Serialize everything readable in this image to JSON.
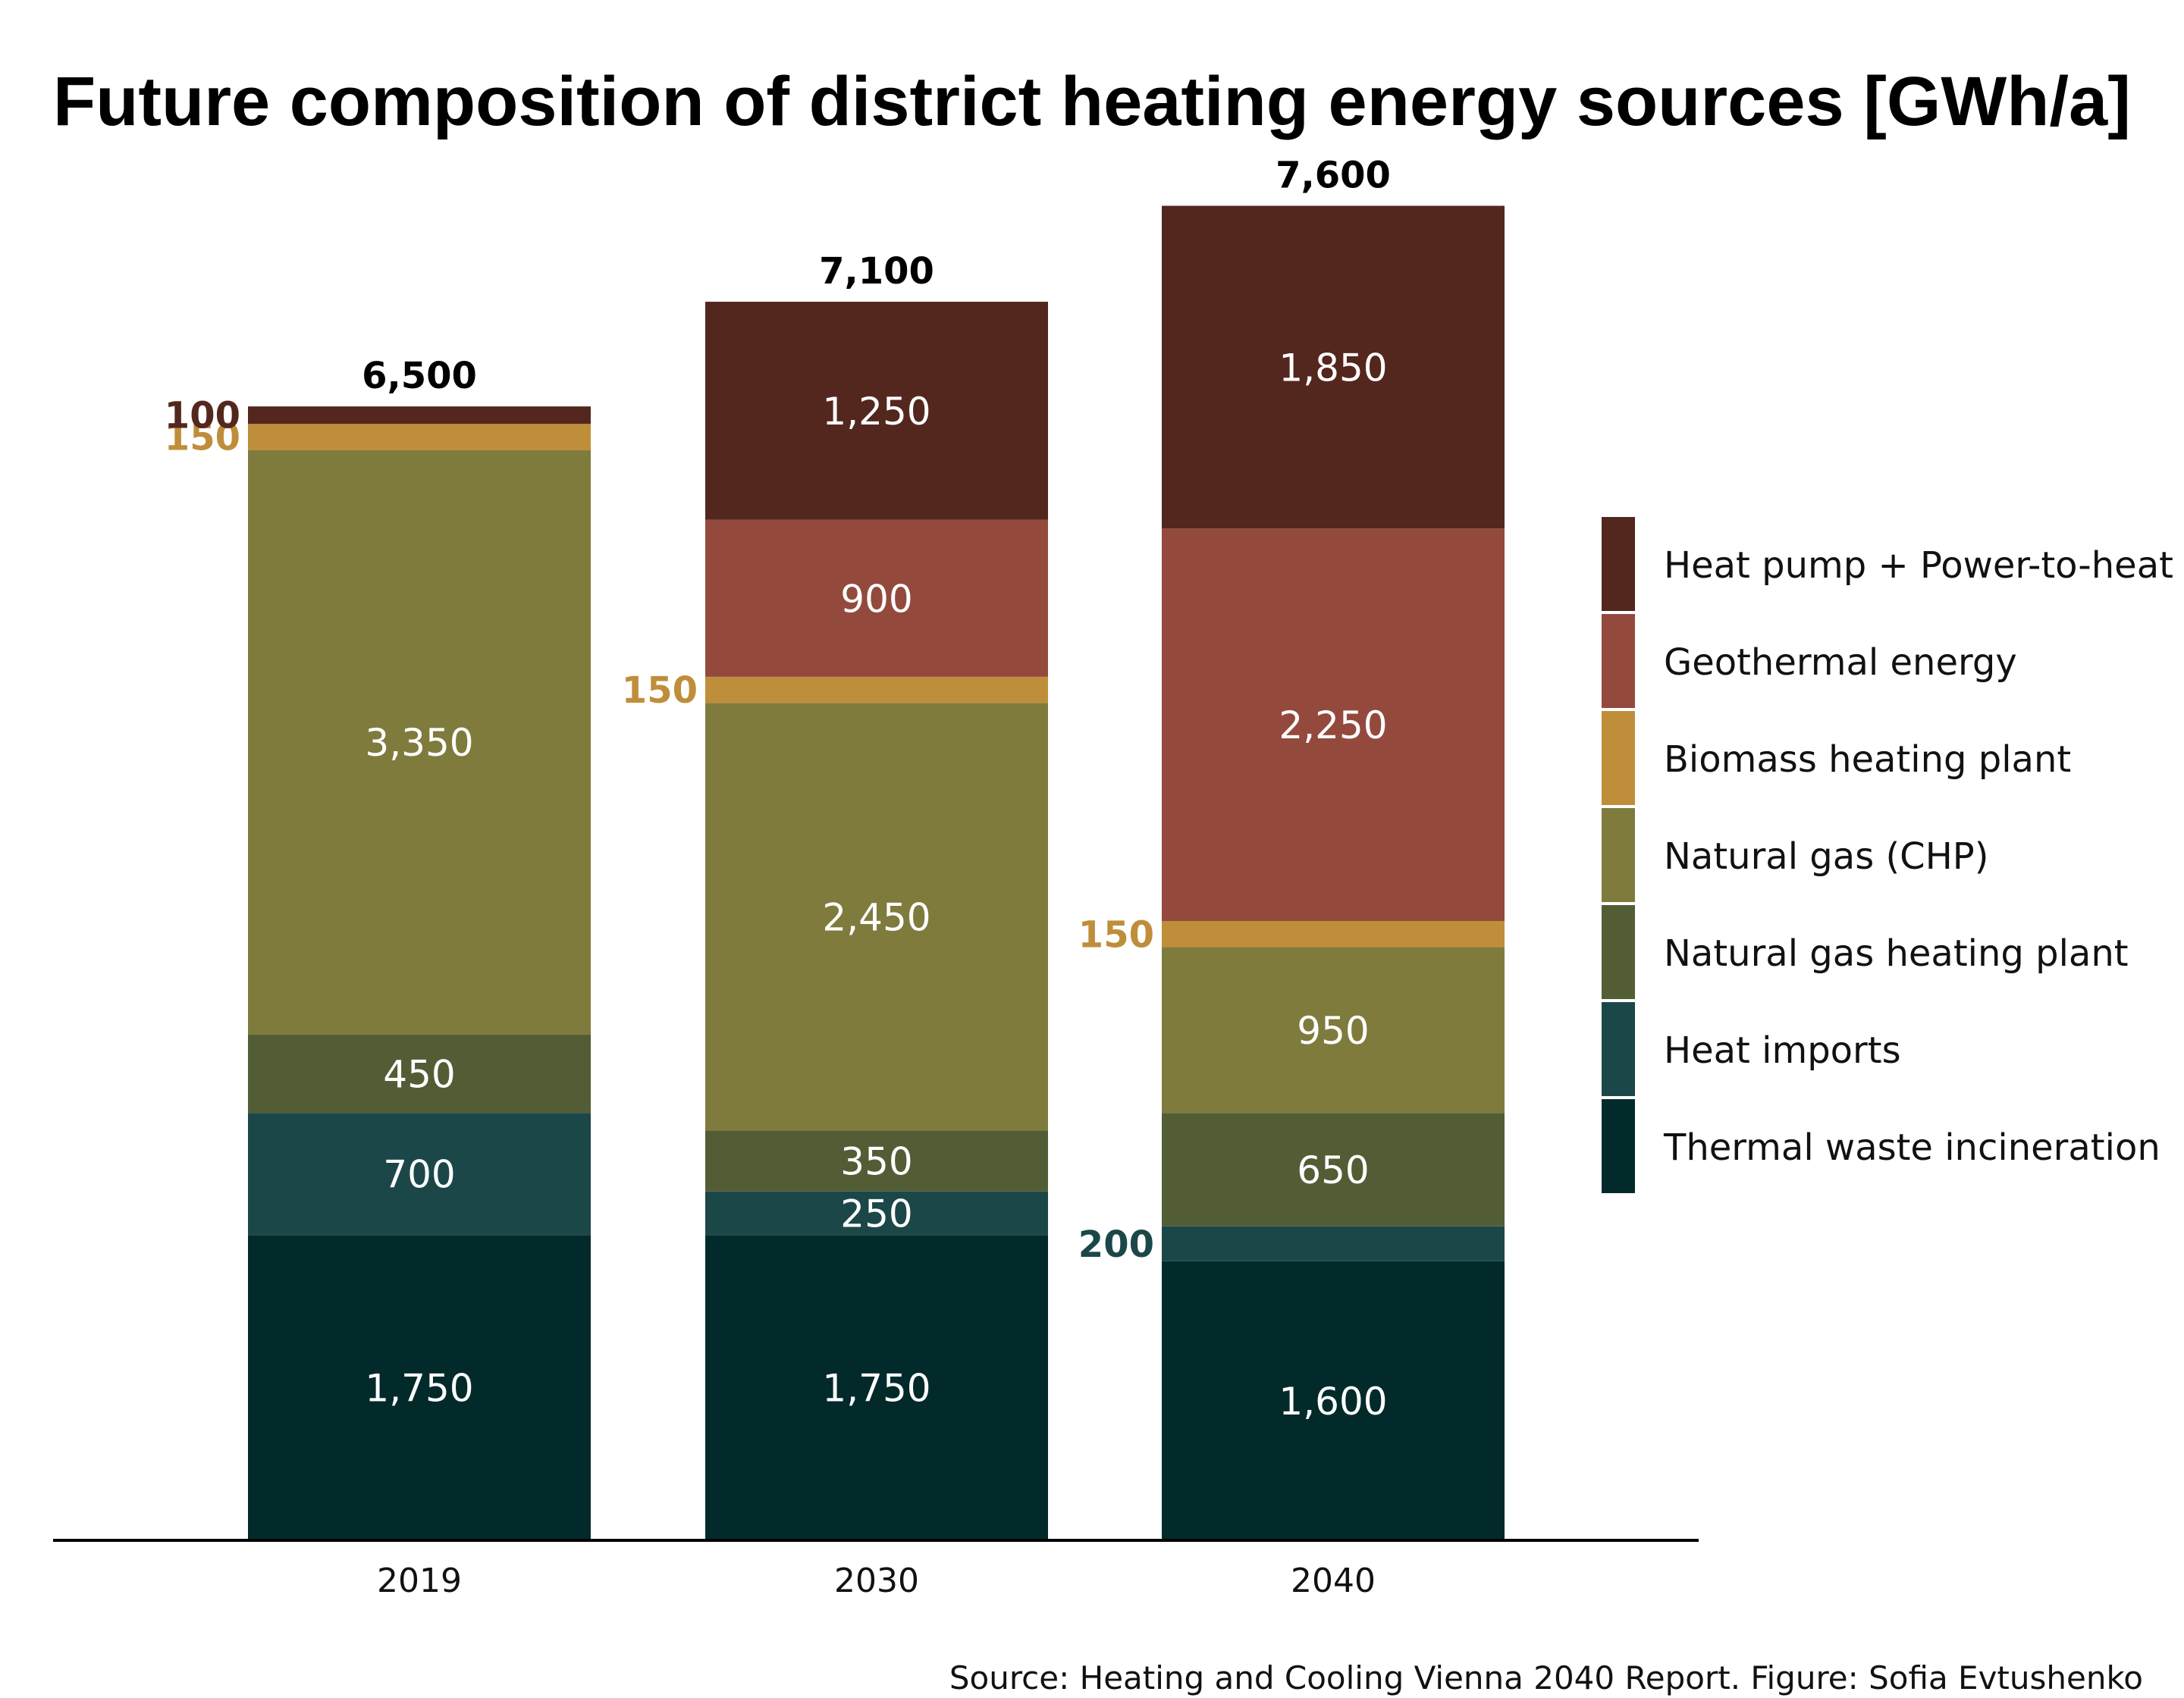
{
  "chart_data": {
    "type": "bar",
    "stacked": true,
    "title": "Future composition of district heating energy sources [GWh/a]",
    "source": "Source: Heating and Cooling Vienna 2040 Report. Figure: Sofia Evtushenko",
    "categories": [
      "2019",
      "2030",
      "2040"
    ],
    "totals": [
      "6,500",
      "7,100",
      "7,600"
    ],
    "ylim": [
      0,
      7600
    ],
    "legend_position": "right",
    "series": [
      {
        "name": "Thermal waste incineration",
        "color": "#032a2b",
        "values": [
          1750,
          1750,
          1600
        ],
        "labels": [
          "1,750",
          "1,750",
          "1,600"
        ],
        "outside": [
          false,
          false,
          false
        ]
      },
      {
        "name": "Heat imports",
        "color": "#1b4749",
        "values": [
          700,
          250,
          200
        ],
        "labels": [
          "700",
          "250",
          "200"
        ],
        "outside": [
          false,
          false,
          true
        ]
      },
      {
        "name": "Natural gas heating plant",
        "color": "#535d35",
        "values": [
          450,
          350,
          650
        ],
        "labels": [
          "450",
          "350",
          "650"
        ],
        "outside": [
          false,
          false,
          false
        ]
      },
      {
        "name": "Natural gas (CHP)",
        "color": "#7f7b3d",
        "values": [
          3350,
          2450,
          950
        ],
        "labels": [
          "3,350",
          "2,450",
          "950"
        ],
        "outside": [
          false,
          false,
          false
        ]
      },
      {
        "name": "Biomass heating plant",
        "color": "#bf8e3a",
        "values": [
          150,
          150,
          150
        ],
        "labels": [
          "150",
          "150",
          "150"
        ],
        "outside": [
          true,
          true,
          true
        ]
      },
      {
        "name": "Geothermal energy",
        "color": "#934a3d",
        "values": [
          0,
          900,
          2250
        ],
        "labels": [
          "",
          "900",
          "2,250"
        ],
        "outside": [
          false,
          false,
          false
        ]
      },
      {
        "name": "Heat pump + Power-to-heat",
        "color": "#53271e",
        "values": [
          100,
          1250,
          1850
        ],
        "labels": [
          "100",
          "1,250",
          "1,850"
        ],
        "outside": [
          true,
          false,
          false
        ]
      }
    ]
  }
}
